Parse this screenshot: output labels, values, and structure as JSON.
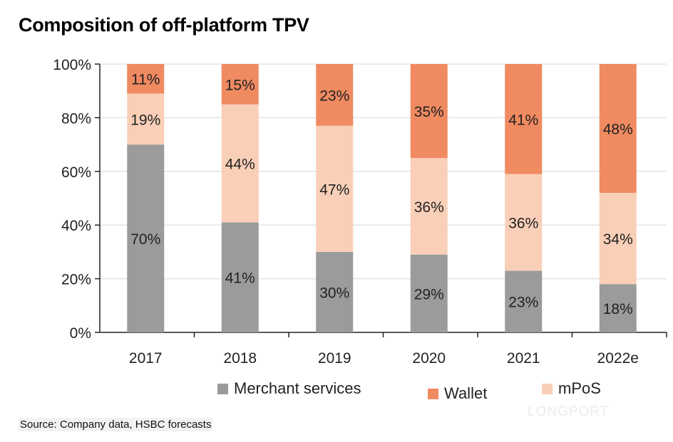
{
  "title": "Composition of off-platform TPV",
  "source": "Source: Company data, HSBC forecasts",
  "watermark": "LONGPORT",
  "chart_data": {
    "type": "bar",
    "stacked": true,
    "title": "Composition of off-platform TPV",
    "categories": [
      "2017",
      "2018",
      "2019",
      "2020",
      "2021",
      "2022e"
    ],
    "series": [
      {
        "name": "Merchant services",
        "color": "#9b9b9b",
        "values": [
          70,
          41,
          30,
          29,
          23,
          18
        ],
        "labels": [
          "70%",
          "41%",
          "30%",
          "29%",
          "23%",
          "18%"
        ]
      },
      {
        "name": "mPoS",
        "color": "#f9cfb8",
        "values": [
          19,
          44,
          47,
          36,
          36,
          34
        ],
        "labels": [
          "19%",
          "44%",
          "47%",
          "36%",
          "36%",
          "34%"
        ]
      },
      {
        "name": "Wallet",
        "color": "#f08a61",
        "values": [
          11,
          15,
          23,
          35,
          41,
          48
        ],
        "labels": [
          "11%",
          "15%",
          "23%",
          "35%",
          "41%",
          "48%"
        ]
      }
    ],
    "ylim": [
      0,
      100
    ],
    "yticks": [
      "0%",
      "20%",
      "40%",
      "60%",
      "80%",
      "100%"
    ],
    "grid": true,
    "legend_placement": "bottom",
    "legend_order": [
      "Merchant services",
      "Wallet",
      "mPoS"
    ]
  }
}
